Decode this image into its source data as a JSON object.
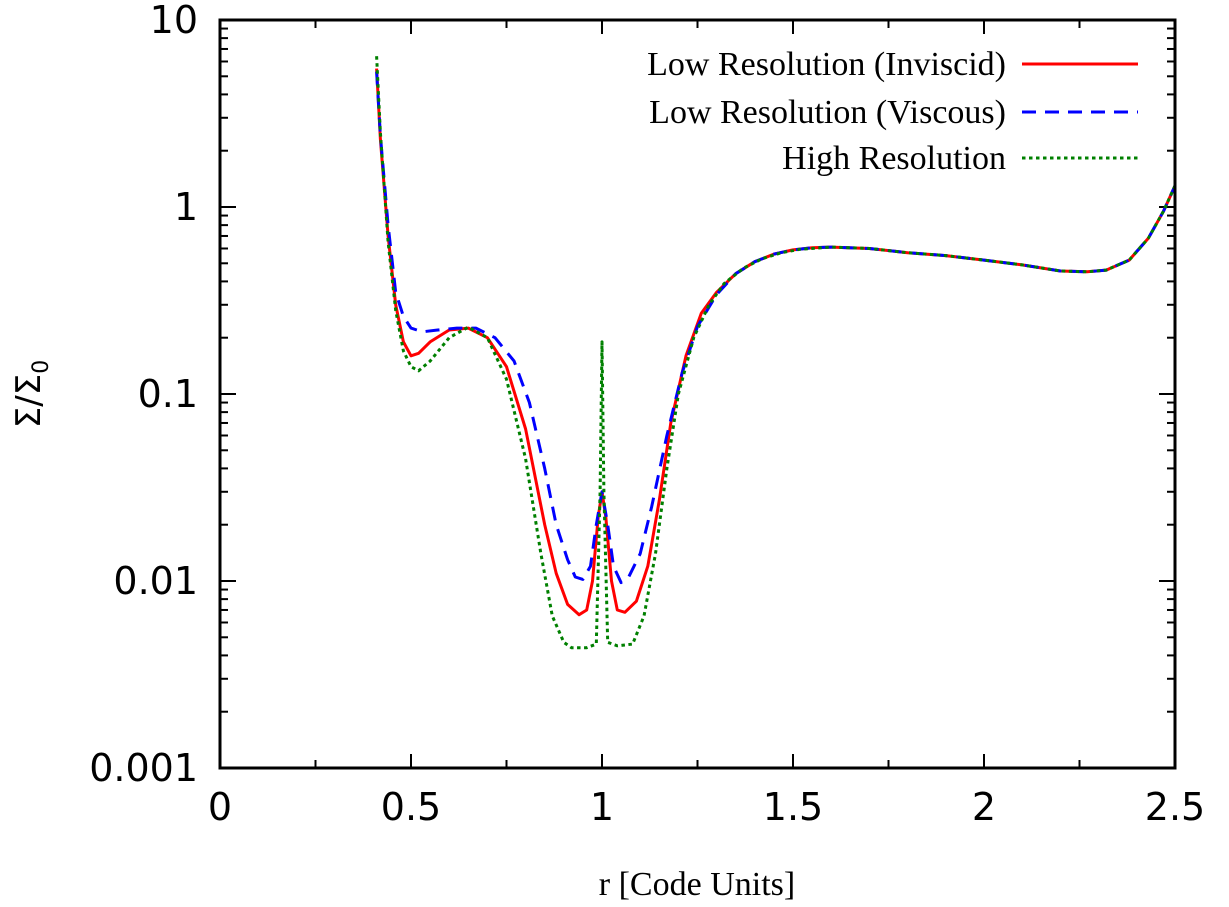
{
  "chart_data": {
    "type": "line",
    "title": "",
    "xlabel": "r [Code Units]",
    "ylabel": {
      "main": "Σ/Σ",
      "sub": "0"
    },
    "xlim": [
      0,
      2.5
    ],
    "ylim": [
      0.001,
      10
    ],
    "yscale": "log",
    "grid": false,
    "legend_position": "top-right",
    "x_ticks": [
      "0",
      "0.5",
      "1",
      "1.5",
      "2",
      "2.5"
    ],
    "x_tick_values": [
      0,
      0.5,
      1,
      1.5,
      2,
      2.5
    ],
    "y_ticks": [
      "0.001",
      "0.01",
      "0.1",
      "1",
      "10"
    ],
    "y_tick_values": [
      0.001,
      0.01,
      0.1,
      1,
      10
    ],
    "series": [
      {
        "name": "Low Resolution (Inviscid)",
        "color": "#ff0000",
        "dash": "solid",
        "points": [
          [
            0.41,
            5.5
          ],
          [
            0.42,
            2.3
          ],
          [
            0.44,
            0.7
          ],
          [
            0.46,
            0.3
          ],
          [
            0.48,
            0.19
          ],
          [
            0.5,
            0.16
          ],
          [
            0.52,
            0.165
          ],
          [
            0.55,
            0.19
          ],
          [
            0.6,
            0.22
          ],
          [
            0.65,
            0.225
          ],
          [
            0.7,
            0.2
          ],
          [
            0.75,
            0.14
          ],
          [
            0.8,
            0.065
          ],
          [
            0.85,
            0.02
          ],
          [
            0.88,
            0.011
          ],
          [
            0.91,
            0.0075
          ],
          [
            0.94,
            0.0066
          ],
          [
            0.96,
            0.007
          ],
          [
            0.975,
            0.01
          ],
          [
            0.99,
            0.022
          ],
          [
            1.0,
            0.03
          ],
          [
            1.01,
            0.022
          ],
          [
            1.025,
            0.01
          ],
          [
            1.04,
            0.007
          ],
          [
            1.06,
            0.0068
          ],
          [
            1.09,
            0.0078
          ],
          [
            1.12,
            0.012
          ],
          [
            1.15,
            0.027
          ],
          [
            1.18,
            0.07
          ],
          [
            1.22,
            0.16
          ],
          [
            1.26,
            0.27
          ],
          [
            1.3,
            0.35
          ],
          [
            1.35,
            0.44
          ],
          [
            1.4,
            0.51
          ],
          [
            1.45,
            0.56
          ],
          [
            1.5,
            0.59
          ],
          [
            1.55,
            0.605
          ],
          [
            1.6,
            0.61
          ],
          [
            1.7,
            0.6
          ],
          [
            1.8,
            0.57
          ],
          [
            1.9,
            0.55
          ],
          [
            2.0,
            0.52
          ],
          [
            2.1,
            0.49
          ],
          [
            2.2,
            0.455
          ],
          [
            2.27,
            0.45
          ],
          [
            2.32,
            0.46
          ],
          [
            2.38,
            0.52
          ],
          [
            2.43,
            0.68
          ],
          [
            2.47,
            0.95
          ],
          [
            2.5,
            1.3
          ]
        ]
      },
      {
        "name": "Low Resolution (Viscous)",
        "color": "#0000ff",
        "dash": "dashed",
        "points": [
          [
            0.41,
            5.3
          ],
          [
            0.42,
            2.4
          ],
          [
            0.44,
            0.8
          ],
          [
            0.46,
            0.35
          ],
          [
            0.48,
            0.26
          ],
          [
            0.5,
            0.225
          ],
          [
            0.53,
            0.215
          ],
          [
            0.57,
            0.22
          ],
          [
            0.62,
            0.225
          ],
          [
            0.67,
            0.225
          ],
          [
            0.72,
            0.2
          ],
          [
            0.77,
            0.15
          ],
          [
            0.81,
            0.09
          ],
          [
            0.85,
            0.04
          ],
          [
            0.88,
            0.02
          ],
          [
            0.91,
            0.013
          ],
          [
            0.93,
            0.0105
          ],
          [
            0.95,
            0.0102
          ],
          [
            0.97,
            0.012
          ],
          [
            0.985,
            0.02
          ],
          [
            1.0,
            0.03
          ],
          [
            1.015,
            0.02
          ],
          [
            1.03,
            0.012
          ],
          [
            1.05,
            0.0098
          ],
          [
            1.07,
            0.0105
          ],
          [
            1.1,
            0.014
          ],
          [
            1.13,
            0.025
          ],
          [
            1.17,
            0.06
          ],
          [
            1.21,
            0.13
          ],
          [
            1.25,
            0.23
          ],
          [
            1.3,
            0.34
          ],
          [
            1.35,
            0.44
          ],
          [
            1.4,
            0.51
          ],
          [
            1.45,
            0.56
          ],
          [
            1.5,
            0.59
          ],
          [
            1.55,
            0.605
          ],
          [
            1.6,
            0.61
          ],
          [
            1.7,
            0.6
          ],
          [
            1.8,
            0.57
          ],
          [
            1.9,
            0.55
          ],
          [
            2.0,
            0.52
          ],
          [
            2.1,
            0.49
          ],
          [
            2.2,
            0.455
          ],
          [
            2.27,
            0.45
          ],
          [
            2.32,
            0.46
          ],
          [
            2.38,
            0.52
          ],
          [
            2.43,
            0.68
          ],
          [
            2.47,
            0.95
          ],
          [
            2.5,
            1.3
          ]
        ]
      },
      {
        "name": "High Resolution",
        "color": "#008000",
        "dash": "dotted",
        "points": [
          [
            0.41,
            6.4
          ],
          [
            0.42,
            2.5
          ],
          [
            0.44,
            0.65
          ],
          [
            0.46,
            0.28
          ],
          [
            0.48,
            0.17
          ],
          [
            0.5,
            0.14
          ],
          [
            0.52,
            0.133
          ],
          [
            0.55,
            0.15
          ],
          [
            0.6,
            0.2
          ],
          [
            0.65,
            0.228
          ],
          [
            0.7,
            0.2
          ],
          [
            0.75,
            0.12
          ],
          [
            0.8,
            0.045
          ],
          [
            0.84,
            0.014
          ],
          [
            0.87,
            0.0065
          ],
          [
            0.9,
            0.0047
          ],
          [
            0.92,
            0.0044
          ],
          [
            0.96,
            0.0044
          ],
          [
            0.985,
            0.0046
          ],
          [
            0.995,
            0.03
          ],
          [
            1.0,
            0.19
          ],
          [
            1.005,
            0.03
          ],
          [
            1.015,
            0.0047
          ],
          [
            1.04,
            0.0045
          ],
          [
            1.08,
            0.0046
          ],
          [
            1.11,
            0.0065
          ],
          [
            1.14,
            0.014
          ],
          [
            1.17,
            0.04
          ],
          [
            1.2,
            0.1
          ],
          [
            1.24,
            0.2
          ],
          [
            1.28,
            0.3
          ],
          [
            1.32,
            0.39
          ],
          [
            1.37,
            0.47
          ],
          [
            1.42,
            0.53
          ],
          [
            1.47,
            0.57
          ],
          [
            1.52,
            0.595
          ],
          [
            1.6,
            0.61
          ],
          [
            1.7,
            0.6
          ],
          [
            1.8,
            0.57
          ],
          [
            1.9,
            0.55
          ],
          [
            2.0,
            0.52
          ],
          [
            2.1,
            0.49
          ],
          [
            2.2,
            0.455
          ],
          [
            2.27,
            0.45
          ],
          [
            2.32,
            0.46
          ],
          [
            2.38,
            0.52
          ],
          [
            2.43,
            0.68
          ],
          [
            2.47,
            0.95
          ],
          [
            2.5,
            1.3
          ]
        ]
      }
    ]
  }
}
